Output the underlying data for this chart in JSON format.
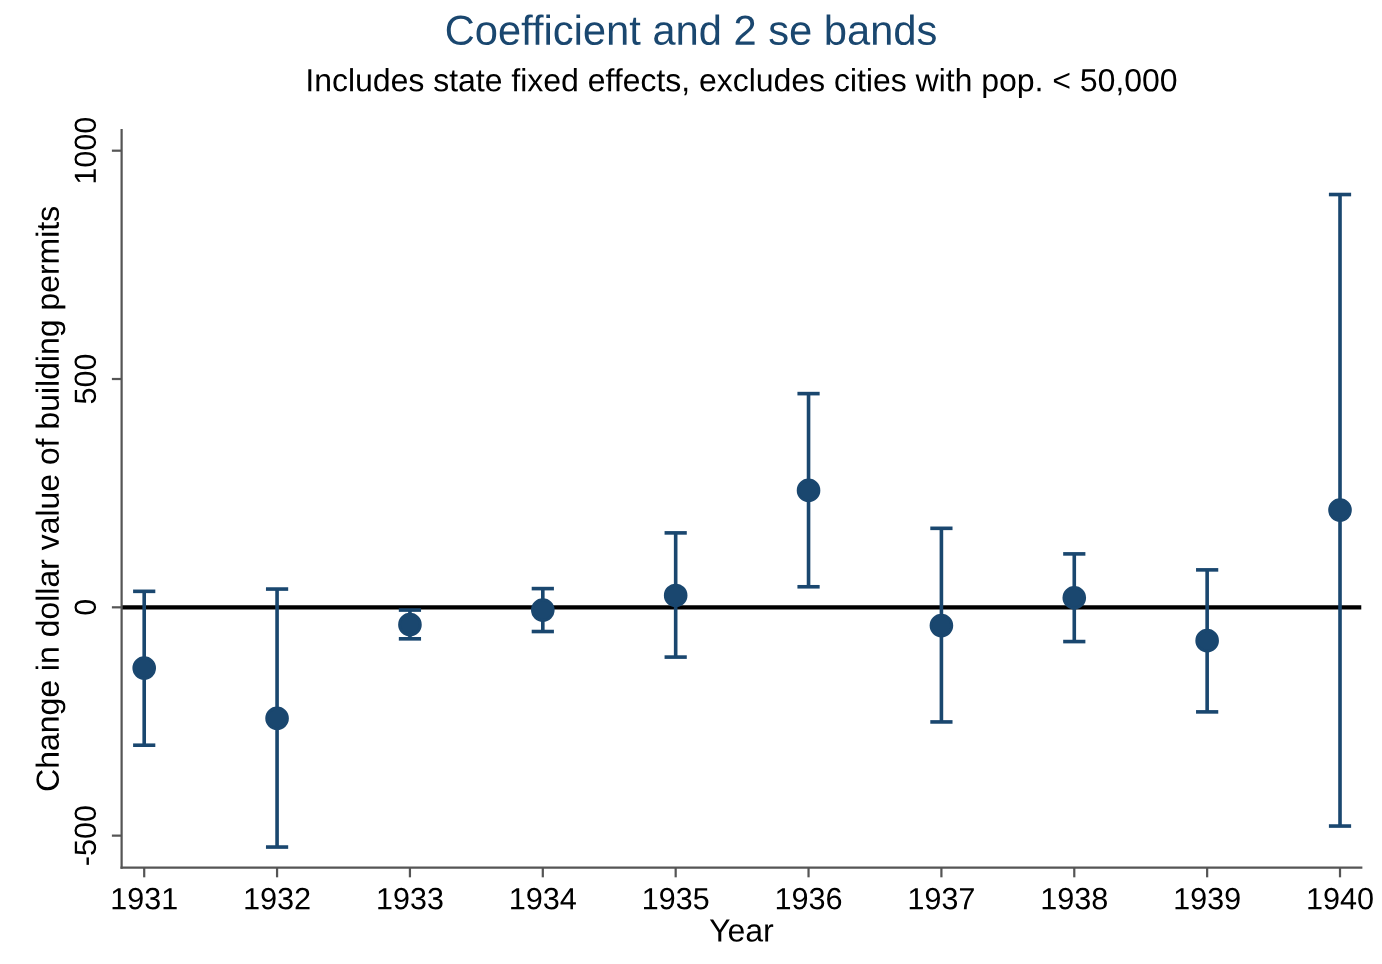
{
  "chart_data": {
    "type": "scatter",
    "title": "Coefficient and 2 se bands",
    "subtitle": "Includes state fixed effects, excludes cities with pop. < 50,000",
    "xlabel": "Year",
    "ylabel": "Change in dollar value of building permits",
    "x": [
      1931,
      1932,
      1933,
      1934,
      1935,
      1936,
      1937,
      1938,
      1939,
      1940
    ],
    "series": [
      {
        "color": "#1a476f",
        "values": [
          -133,
          -243,
          -38,
          -6,
          26,
          256,
          -40,
          21,
          -73,
          213
        ],
        "errors": [
          [
            -302,
            35
          ],
          [
            -525,
            40
          ],
          [
            -69,
            -6
          ],
          [
            -53,
            41
          ],
          [
            -109,
            163
          ],
          [
            45,
            468
          ],
          [
            -251,
            173
          ],
          [
            -75,
            117
          ],
          [
            -229,
            82
          ],
          [
            -479,
            904
          ]
        ]
      }
    ],
    "xlim": [
      1930.83,
      1940.16
    ],
    "xticks": [
      1931,
      1932,
      1933,
      1934,
      1935,
      1936,
      1937,
      1938,
      1939,
      1940
    ],
    "ylim": [
      -570,
      1045
    ],
    "yticks": [
      {
        "value": -500,
        "label": "-500"
      },
      0,
      500,
      1000
    ],
    "ref_lines": [
      {
        "axis": "y",
        "value": 0,
        "color": "#000000"
      }
    ],
    "marker": "circle",
    "grid": false,
    "legend": false
  }
}
